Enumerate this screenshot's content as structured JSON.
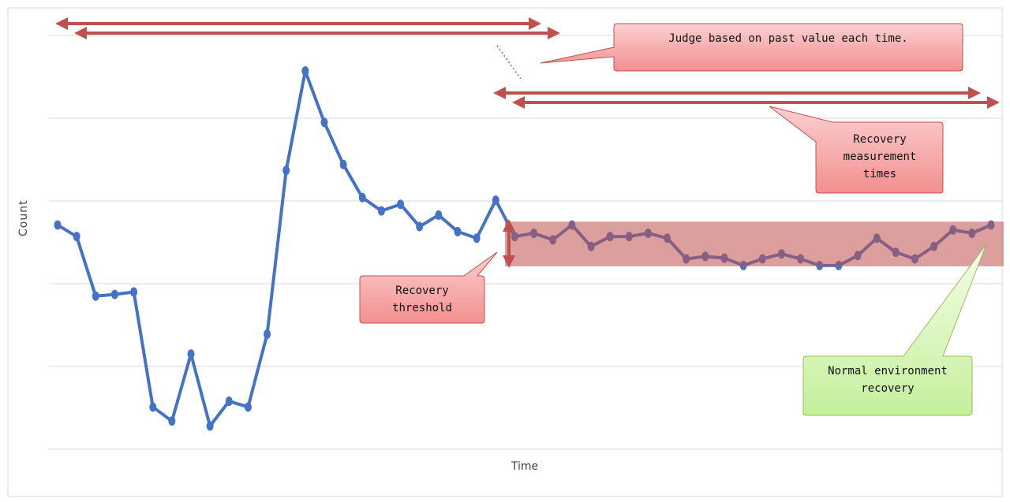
{
  "chart_data": {
    "type": "line",
    "x_label": "Time",
    "y_label": "Count",
    "values": [
      2.71,
      2.57,
      1.85,
      1.87,
      1.9,
      0.51,
      0.34,
      1.15,
      0.28,
      0.58,
      0.51,
      1.39,
      3.37,
      4.57,
      3.95,
      3.44,
      3.04,
      2.88,
      2.96,
      2.69,
      2.83,
      2.63,
      2.55,
      3.01,
      2.57,
      2.61,
      2.53,
      2.71,
      2.45,
      2.57,
      2.57,
      2.61,
      2.55,
      2.3,
      2.33,
      2.31,
      2.22,
      2.3,
      2.36,
      2.3,
      2.22,
      2.22,
      2.34,
      2.55,
      2.38,
      2.3,
      2.45,
      2.65,
      2.61,
      2.71
    ],
    "color": "#4472c4",
    "ylim": [
      0,
      5
    ],
    "yticks": [
      0,
      1,
      2,
      3,
      4,
      5
    ],
    "grid": true,
    "threshold_band": {
      "from": 2.21,
      "to": 2.75,
      "color": "#c0504d"
    },
    "annotations": {
      "judge": "Judge based on past value each time.",
      "measurement": "Recovery measurement times",
      "threshold": "Recovery threshold",
      "normal": "Normal environment recovery"
    }
  }
}
